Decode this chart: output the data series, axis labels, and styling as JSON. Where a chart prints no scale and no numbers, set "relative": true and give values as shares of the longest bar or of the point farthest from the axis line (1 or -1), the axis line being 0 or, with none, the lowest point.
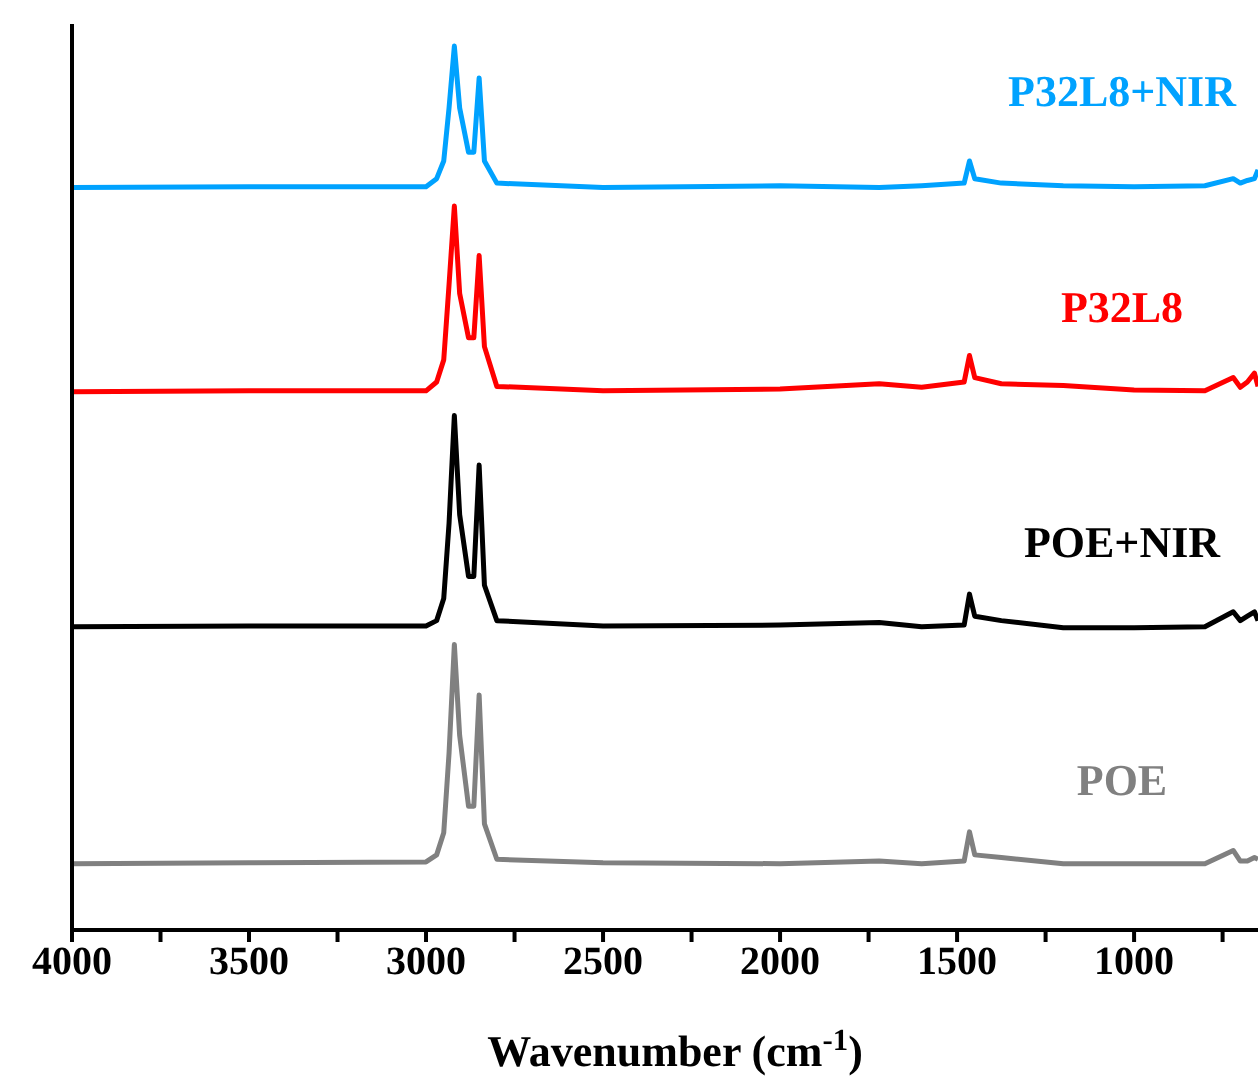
{
  "chart_data": {
    "type": "line",
    "relative": true,
    "xlabel": "Wavenumber (cm$^{-1}$)",
    "xlim": [
      4000,
      650
    ],
    "xticks": [
      4000,
      {
        "value": 3750,
        "label": null
      },
      3500,
      {
        "value": 3250,
        "label": null
      },
      3000,
      {
        "value": 2750,
        "label": null
      },
      2500,
      {
        "value": 2250,
        "label": null
      },
      2000,
      {
        "value": 1750,
        "label": null
      },
      1500,
      {
        "value": 1250,
        "label": null
      },
      1000,
      {
        "value": 750,
        "label": null
      }
    ],
    "x": [
      4000,
      3500,
      3000,
      2970,
      2950,
      2935,
      2920,
      2905,
      2880,
      2865,
      2850,
      2835,
      2800,
      2500,
      2000,
      1720,
      1600,
      1480,
      1465,
      1450,
      1375,
      1200,
      1000,
      800,
      720,
      700,
      680,
      660,
      650
    ],
    "series": [
      {
        "name": "POE",
        "color": "#808080",
        "values": [
          0.075,
          0.076,
          0.077,
          0.085,
          0.11,
          0.2,
          0.323,
          0.22,
          0.14,
          0.14,
          0.266,
          0.12,
          0.08,
          0.076,
          0.075,
          0.078,
          0.075,
          0.078,
          0.111,
          0.085,
          0.082,
          0.075,
          0.075,
          0.075,
          0.09,
          0.078,
          0.078,
          0.082,
          0.08
        ]
      },
      {
        "name": "POE+NIR",
        "color": "#000000",
        "values": [
          0.343,
          0.344,
          0.344,
          0.35,
          0.375,
          0.46,
          0.582,
          0.47,
          0.4,
          0.4,
          0.526,
          0.39,
          0.35,
          0.344,
          0.345,
          0.348,
          0.343,
          0.345,
          0.38,
          0.355,
          0.35,
          0.342,
          0.342,
          0.343,
          0.36,
          0.35,
          0.355,
          0.36,
          0.35
        ]
      },
      {
        "name": "P32L8",
        "color": "#ff0000",
        "values": [
          0.609,
          0.61,
          0.61,
          0.62,
          0.645,
          0.73,
          0.819,
          0.72,
          0.67,
          0.67,
          0.763,
          0.66,
          0.615,
          0.61,
          0.612,
          0.618,
          0.614,
          0.62,
          0.65,
          0.625,
          0.618,
          0.616,
          0.611,
          0.61,
          0.625,
          0.614,
          0.62,
          0.63,
          0.615
        ]
      },
      {
        "name": "P32L8+NIR",
        "color": "#00a2ff",
        "values": [
          0.84,
          0.841,
          0.841,
          0.85,
          0.87,
          0.93,
          1.0,
          0.93,
          0.88,
          0.88,
          0.964,
          0.87,
          0.845,
          0.84,
          0.842,
          0.84,
          0.842,
          0.845,
          0.87,
          0.85,
          0.845,
          0.842,
          0.841,
          0.842,
          0.85,
          0.845,
          0.848,
          0.85,
          0.86
        ]
      }
    ],
    "grid": false,
    "legend": false,
    "marker": "none",
    "line_style": "solid"
  }
}
